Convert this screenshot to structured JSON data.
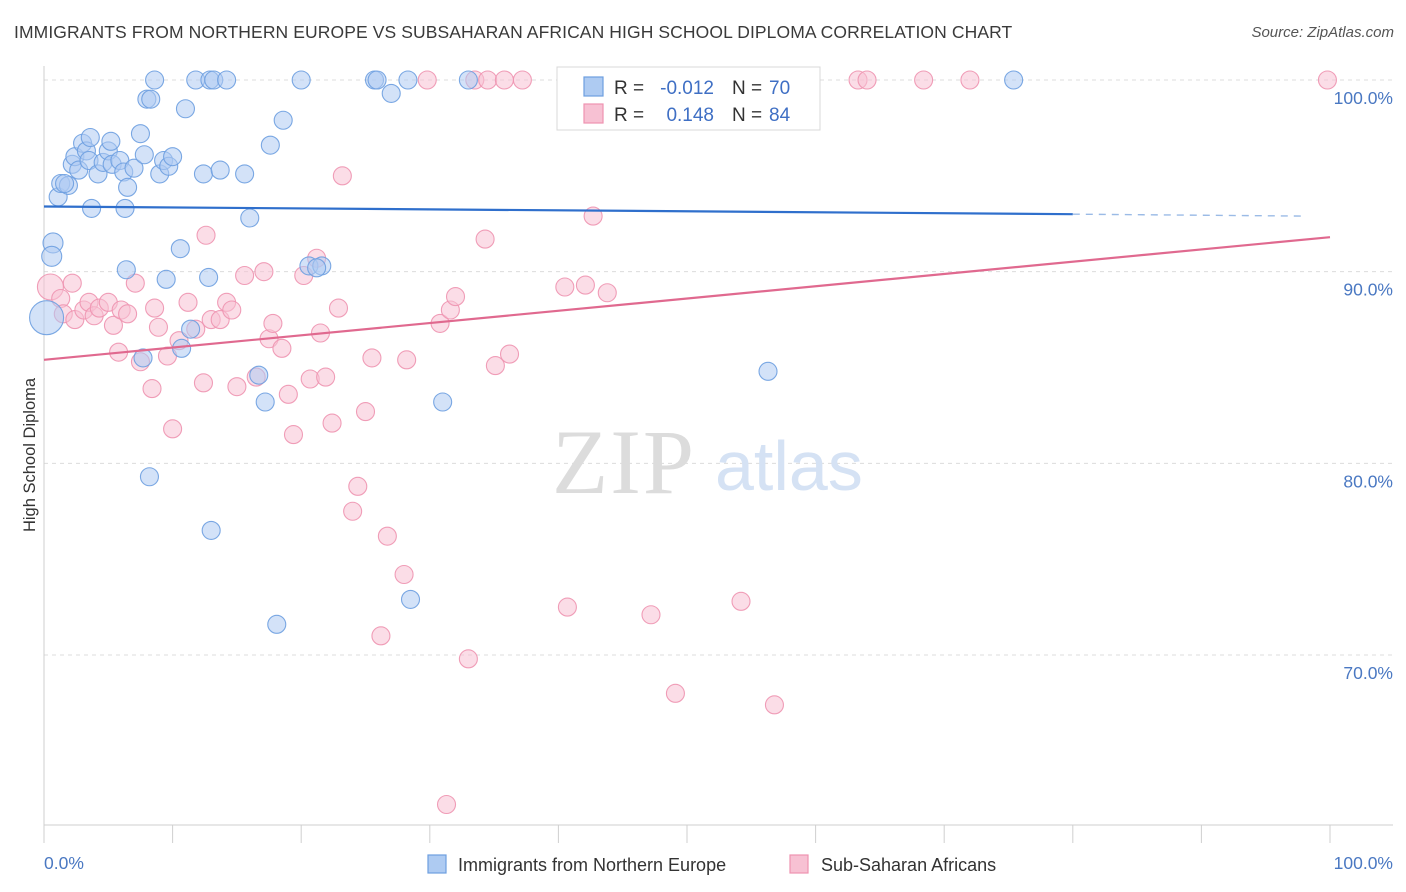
{
  "title": "IMMIGRANTS FROM NORTHERN EUROPE VS SUBSAHARAN AFRICAN HIGH SCHOOL DIPLOMA CORRELATION CHART",
  "source": "Source: ZipAtlas.com",
  "watermark": {
    "zip": "ZIP",
    "atlas": "atlas"
  },
  "colors": {
    "blue": "#6d9fe0",
    "blue_fill": "#aecbf2",
    "blue_line": "#2f6fcc",
    "pink": "#ee93b0",
    "pink_fill": "#f7c1d3",
    "pink_line": "#e0698f",
    "tick_label": "#4a78c2",
    "grid": "#dcdcdc"
  },
  "legend": {
    "rows": [
      {
        "r_label": "R =",
        "r_value": "-0.012",
        "n_label": "N =",
        "n_value": "70",
        "series": "blue"
      },
      {
        "r_label": "R =",
        "r_value": "0.148",
        "n_label": "N =",
        "n_value": "84",
        "series": "pink"
      }
    ]
  },
  "chart_data": {
    "type": "scatter",
    "title": "IMMIGRANTS FROM NORTHERN EUROPE VS SUBSAHARAN AFRICAN HIGH SCHOOL DIPLOMA CORRELATION CHART",
    "xlabel": "",
    "ylabel": "High School Diploma",
    "xlim": [
      0,
      100
    ],
    "ylim": [
      60.5,
      101.5
    ],
    "x_tick_labels": [
      "0.0%",
      "100.0%"
    ],
    "y_ticks": [
      100,
      90,
      80,
      70
    ],
    "y_tick_labels": [
      "100.0%",
      "90.0%",
      "80.0%",
      "70.0%"
    ],
    "grid": true,
    "legend_position": "top-center",
    "series": [
      {
        "name": "Immigrants from Northern Europe",
        "color": "blue",
        "r": -0.012,
        "n": 70,
        "trend": {
          "x": [
            0,
            80
          ],
          "y": [
            93.4,
            93.0
          ],
          "dashed_to": [
            98,
            92.9
          ]
        },
        "points": [
          [
            0.2,
            87.6,
            34
          ],
          [
            0.7,
            91.5,
            20
          ],
          [
            0.6,
            90.8,
            20
          ],
          [
            1.1,
            93.9,
            18
          ],
          [
            1.3,
            94.6,
            18
          ],
          [
            1.9,
            94.5,
            18
          ],
          [
            1.6,
            94.6,
            18
          ],
          [
            2.2,
            95.6,
            18
          ],
          [
            2.4,
            96.0,
            18
          ],
          [
            2.7,
            95.3,
            18
          ],
          [
            3.0,
            96.7,
            18
          ],
          [
            3.3,
            96.3,
            18
          ],
          [
            3.5,
            95.8,
            18
          ],
          [
            3.6,
            97.0,
            18
          ],
          [
            4.2,
            95.1,
            18
          ],
          [
            4.6,
            95.7,
            18
          ],
          [
            5.0,
            96.3,
            18
          ],
          [
            5.2,
            96.8,
            18
          ],
          [
            5.3,
            95.6,
            18
          ],
          [
            5.9,
            95.8,
            18
          ],
          [
            6.2,
            95.2,
            18
          ],
          [
            6.5,
            94.4,
            18
          ],
          [
            7.0,
            95.4,
            18
          ],
          [
            7.5,
            97.2,
            18
          ],
          [
            7.8,
            96.1,
            18
          ],
          [
            8.0,
            99.0,
            18
          ],
          [
            8.3,
            99.0,
            18
          ],
          [
            8.6,
            100.0,
            18
          ],
          [
            9.0,
            95.1,
            18
          ],
          [
            9.3,
            95.8,
            18
          ],
          [
            9.7,
            95.5,
            18
          ],
          [
            10.0,
            96.0,
            18
          ],
          [
            10.6,
            91.2,
            18
          ],
          [
            11.0,
            98.5,
            18
          ],
          [
            11.8,
            100.0,
            18
          ],
          [
            12.4,
            95.1,
            18
          ],
          [
            12.9,
            100.0,
            18
          ],
          [
            13.2,
            100.0,
            18
          ],
          [
            13.7,
            95.3,
            18
          ],
          [
            14.2,
            100.0,
            18
          ],
          [
            15.6,
            95.1,
            18
          ],
          [
            16.0,
            92.8,
            18
          ],
          [
            17.6,
            96.6,
            18
          ],
          [
            18.6,
            97.9,
            18
          ],
          [
            20.0,
            100.0,
            18
          ],
          [
            20.6,
            90.3,
            18
          ],
          [
            21.6,
            90.3,
            18
          ],
          [
            6.4,
            90.1,
            18
          ],
          [
            9.5,
            89.6,
            18
          ],
          [
            12.8,
            89.7,
            18
          ],
          [
            3.7,
            93.3,
            18
          ],
          [
            6.3,
            93.3,
            18
          ],
          [
            25.7,
            100.0,
            18
          ],
          [
            25.9,
            100.0,
            18
          ],
          [
            27.0,
            99.3,
            18
          ],
          [
            28.3,
            100.0,
            18
          ],
          [
            33.0,
            100.0,
            18
          ],
          [
            75.4,
            100.0,
            18
          ],
          [
            10.7,
            86.0,
            18
          ],
          [
            11.4,
            87.0,
            18
          ],
          [
            7.7,
            85.5,
            18
          ],
          [
            16.7,
            84.6,
            18
          ],
          [
            17.2,
            83.2,
            18
          ],
          [
            31.0,
            83.2,
            18
          ],
          [
            8.2,
            79.3,
            18
          ],
          [
            13.0,
            76.5,
            18
          ],
          [
            28.5,
            72.9,
            18
          ],
          [
            18.1,
            71.6,
            18
          ],
          [
            56.3,
            84.8,
            18
          ],
          [
            21.2,
            90.2,
            18
          ]
        ]
      },
      {
        "name": "Sub-Saharan Africans",
        "color": "pink",
        "r": 0.148,
        "n": 84,
        "trend": {
          "x": [
            0,
            100
          ],
          "y": [
            85.4,
            91.8
          ]
        },
        "points": [
          [
            0.5,
            89.2,
            26
          ],
          [
            1.3,
            88.6,
            18
          ],
          [
            1.5,
            87.8,
            18
          ],
          [
            2.2,
            89.4,
            18
          ],
          [
            2.4,
            87.5,
            18
          ],
          [
            3.1,
            88.0,
            18
          ],
          [
            3.5,
            88.4,
            18
          ],
          [
            3.9,
            87.7,
            18
          ],
          [
            4.3,
            88.1,
            18
          ],
          [
            5.0,
            88.4,
            18
          ],
          [
            5.4,
            87.2,
            18
          ],
          [
            5.8,
            85.8,
            18
          ],
          [
            6.0,
            88.0,
            18
          ],
          [
            6.5,
            87.8,
            18
          ],
          [
            7.1,
            89.4,
            18
          ],
          [
            7.5,
            85.3,
            18
          ],
          [
            8.4,
            83.9,
            18
          ],
          [
            8.6,
            88.1,
            18
          ],
          [
            8.9,
            87.1,
            18
          ],
          [
            9.6,
            85.6,
            18
          ],
          [
            10.0,
            81.8,
            18
          ],
          [
            10.5,
            86.4,
            18
          ],
          [
            11.2,
            88.4,
            18
          ],
          [
            11.8,
            87.0,
            18
          ],
          [
            12.4,
            84.2,
            18
          ],
          [
            12.6,
            91.9,
            18
          ],
          [
            13.0,
            87.5,
            18
          ],
          [
            13.7,
            87.5,
            18
          ],
          [
            14.2,
            88.4,
            18
          ],
          [
            14.6,
            88.0,
            18
          ],
          [
            15.0,
            84.0,
            18
          ],
          [
            15.6,
            89.8,
            18
          ],
          [
            16.5,
            84.5,
            18
          ],
          [
            17.1,
            90.0,
            18
          ],
          [
            17.5,
            86.5,
            18
          ],
          [
            17.8,
            87.3,
            18
          ],
          [
            18.5,
            86.0,
            18
          ],
          [
            19.0,
            83.6,
            18
          ],
          [
            19.4,
            81.5,
            18
          ],
          [
            20.2,
            89.8,
            18
          ],
          [
            20.7,
            84.4,
            18
          ],
          [
            21.2,
            90.7,
            18
          ],
          [
            21.5,
            86.8,
            18
          ],
          [
            21.9,
            84.5,
            18
          ],
          [
            22.4,
            82.1,
            18
          ],
          [
            22.9,
            88.1,
            18
          ],
          [
            23.2,
            95.0,
            18
          ],
          [
            24.0,
            77.5,
            18
          ],
          [
            24.4,
            78.8,
            18
          ],
          [
            25.0,
            82.7,
            18
          ],
          [
            25.5,
            85.5,
            18
          ],
          [
            26.2,
            71.0,
            18
          ],
          [
            26.7,
            76.2,
            18
          ],
          [
            28.2,
            85.4,
            18
          ],
          [
            28.0,
            74.2,
            18
          ],
          [
            29.8,
            100.0,
            18
          ],
          [
            30.8,
            87.3,
            18
          ],
          [
            31.6,
            88.0,
            18
          ],
          [
            32.0,
            88.7,
            18
          ],
          [
            33.0,
            69.8,
            18
          ],
          [
            33.5,
            100.0,
            18
          ],
          [
            34.3,
            91.7,
            18
          ],
          [
            34.5,
            100.0,
            18
          ],
          [
            35.1,
            85.1,
            18
          ],
          [
            35.8,
            100.0,
            18
          ],
          [
            36.2,
            85.7,
            18
          ],
          [
            37.2,
            100.0,
            18
          ],
          [
            40.5,
            89.2,
            18
          ],
          [
            40.7,
            72.5,
            18
          ],
          [
            42.1,
            89.3,
            18
          ],
          [
            42.7,
            92.9,
            18
          ],
          [
            43.8,
            88.9,
            18
          ],
          [
            46.5,
            100.0,
            18
          ],
          [
            47.2,
            72.1,
            18
          ],
          [
            49.1,
            68.0,
            18
          ],
          [
            54.0,
            100.0,
            18
          ],
          [
            54.2,
            72.8,
            18
          ],
          [
            56.8,
            67.4,
            18
          ],
          [
            63.3,
            100.0,
            18
          ],
          [
            64.0,
            100.0,
            18
          ],
          [
            68.4,
            100.0,
            18
          ],
          [
            72.0,
            100.0,
            18
          ],
          [
            99.8,
            100.0,
            18
          ],
          [
            31.3,
            62.2,
            18
          ]
        ]
      }
    ]
  }
}
